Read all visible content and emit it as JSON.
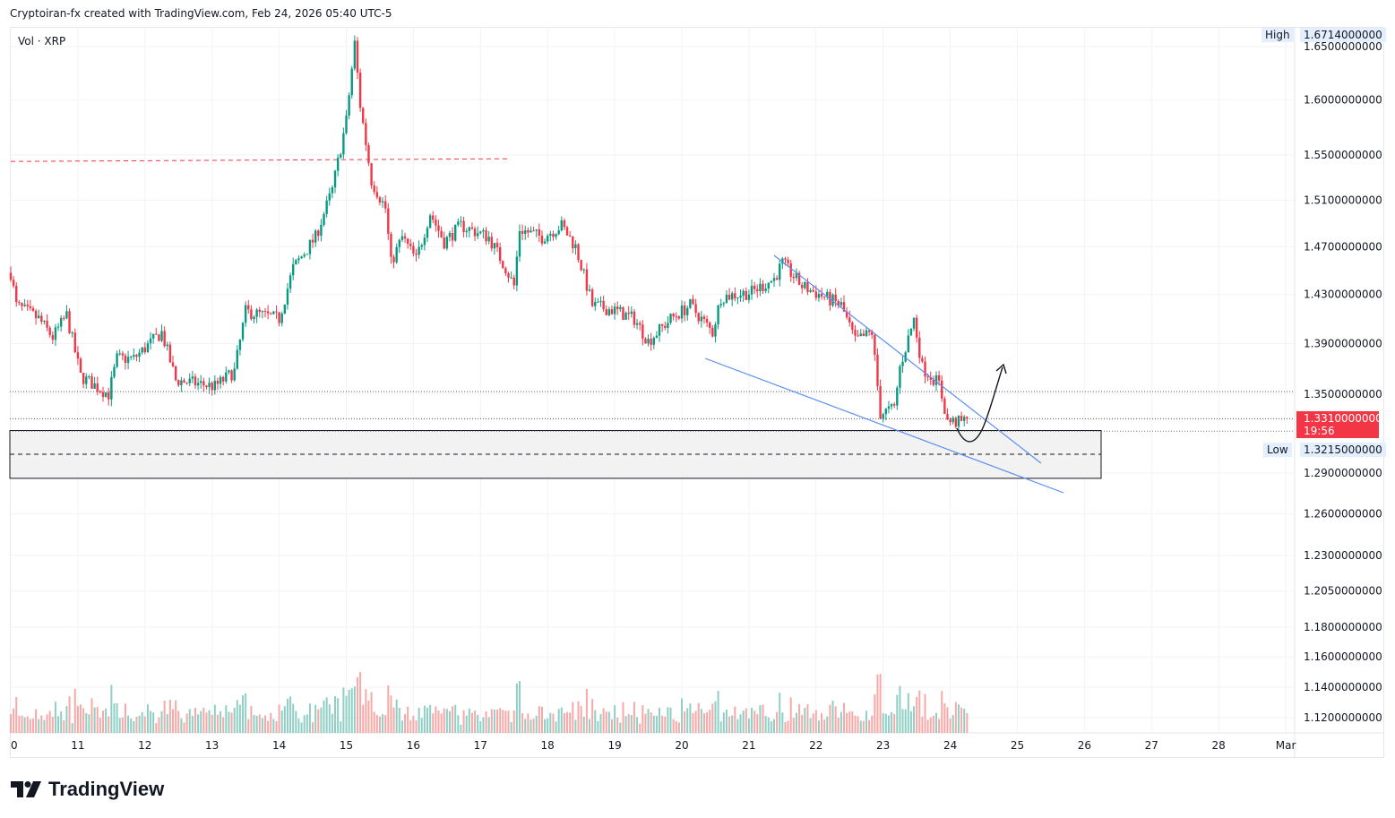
{
  "header": {
    "attribution": "Cryptoiran-fx created with TradingView.com, Feb 24, 2026 05:40 UTC-5"
  },
  "legend": {
    "label": "Vol · XRP"
  },
  "price_axis": {
    "high_label": "High",
    "high_value": "1.6714000000",
    "low_label": "Low",
    "low_value": "1.3215000000",
    "last_value": "1.3310000000",
    "countdown": "19:56",
    "last_color": "#f23645"
  },
  "logo": {
    "text": "TradingView"
  },
  "colors": {
    "up": "#089981",
    "down": "#f23645",
    "trendline": "#5b8def",
    "volume_up": "#8fcfc4",
    "volume_down": "#f7a9a7"
  },
  "chart_data": {
    "type": "candlestick",
    "symbol": "XRP",
    "scale": "log",
    "grid": true,
    "y_ticks": [
      "1.6500000000",
      "1.6000000000",
      "1.5500000000",
      "1.5100000000",
      "1.4700000000",
      "1.4300000000",
      "1.3900000000",
      "1.3500000000",
      "1.2900000000",
      "1.2600000000",
      "1.2300000000",
      "1.2050000000",
      "1.1800000000",
      "1.1600000000",
      "1.1400000000",
      "1.1200000000"
    ],
    "x_ticks": [
      "0",
      "11",
      "12",
      "13",
      "14",
      "15",
      "16",
      "17",
      "18",
      "19",
      "20",
      "21",
      "22",
      "23",
      "24",
      "25",
      "26",
      "27",
      "28",
      "Mar"
    ],
    "interval": "1h",
    "close_path": [
      [
        "02-10 00:00",
        1.448
      ],
      [
        "02-10 02:00",
        1.421
      ],
      [
        "02-10 10:00",
        1.41
      ],
      [
        "02-10 15:00",
        1.395
      ],
      [
        "02-10 20:00",
        1.413
      ],
      [
        "02-11 01:00",
        1.364
      ],
      [
        "02-11 11:00",
        1.35
      ],
      [
        "02-11 14:00",
        1.378
      ],
      [
        "02-11 20:00",
        1.378
      ],
      [
        "02-12 06:00",
        1.399
      ],
      [
        "02-12 11:00",
        1.361
      ],
      [
        "02-13 01:00",
        1.356
      ],
      [
        "02-13 08:00",
        1.368
      ],
      [
        "02-13 12:00",
        1.416
      ],
      [
        "02-14 00:00",
        1.41
      ],
      [
        "02-14 05:00",
        1.452
      ],
      [
        "02-14 13:00",
        1.478
      ],
      [
        "02-14 19:00",
        1.519
      ],
      [
        "02-15 00:00",
        1.581
      ],
      [
        "02-15 03:00",
        1.653
      ],
      [
        "02-15 05:00",
        1.595
      ],
      [
        "02-15 09:00",
        1.527
      ],
      [
        "02-15 14:00",
        1.503
      ],
      [
        "02-15 16:00",
        1.456
      ],
      [
        "02-15 20:00",
        1.478
      ],
      [
        "02-16 01:00",
        1.459
      ],
      [
        "02-16 06:00",
        1.499
      ],
      [
        "02-16 11:00",
        1.474
      ],
      [
        "02-16 17:00",
        1.488
      ],
      [
        "02-17 03:00",
        1.478
      ],
      [
        "02-17 09:00",
        1.452
      ],
      [
        "02-17 12:00",
        1.437
      ],
      [
        "02-17 14:00",
        1.485
      ],
      [
        "02-17 22:00",
        1.478
      ],
      [
        "02-18 05:00",
        1.488
      ],
      [
        "02-18 10:00",
        1.47
      ],
      [
        "02-18 16:00",
        1.421
      ],
      [
        "02-19 00:00",
        1.417
      ],
      [
        "02-19 07:00",
        1.41
      ],
      [
        "02-19 12:00",
        1.392
      ],
      [
        "02-19 20:00",
        1.41
      ],
      [
        "02-20 03:00",
        1.421
      ],
      [
        "02-20 11:00",
        1.399
      ],
      [
        "02-20 14:00",
        1.428
      ],
      [
        "02-21 01:00",
        1.432
      ],
      [
        "02-21 09:00",
        1.443
      ],
      [
        "02-21 12:00",
        1.456
      ],
      [
        "02-21 19:00",
        1.437
      ],
      [
        "02-22 09:00",
        1.421
      ],
      [
        "02-22 14:00",
        1.392
      ],
      [
        "02-22 20:00",
        1.399
      ],
      [
        "02-22 23:00",
        1.335
      ],
      [
        "02-23 04:00",
        1.339
      ],
      [
        "02-23 06:00",
        1.371
      ],
      [
        "02-23 11:00",
        1.41
      ],
      [
        "02-23 14:00",
        1.371
      ],
      [
        "02-23 20:00",
        1.358
      ],
      [
        "02-23 23:00",
        1.329
      ],
      [
        "02-24 04:00",
        1.328
      ],
      [
        "02-24 06:00",
        1.331
      ]
    ],
    "annotations": {
      "resistance_dashed": 1.545,
      "support_zone": [
        1.286,
        1.322
      ],
      "zone_mid_dashed": 1.304,
      "dotted_level": 1.352
    }
  }
}
